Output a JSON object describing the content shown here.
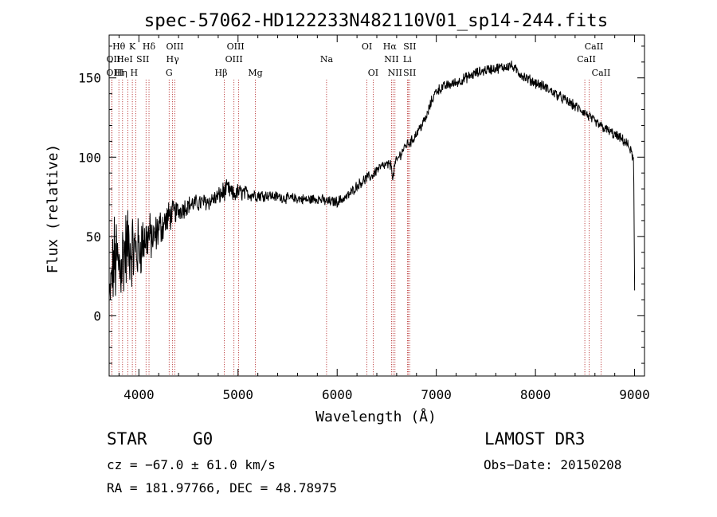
{
  "chart_data": {
    "type": "line",
    "title": "spec-57062-HD122233N482110V01_sp14-244.fits",
    "xlabel": "Wavelength (Å)",
    "ylabel": "Flux (relative)",
    "xlim": [
      3700,
      9100
    ],
    "ylim": [
      -38,
      177
    ],
    "xticks": [
      "4000",
      "5000",
      "6000",
      "7000",
      "8000",
      "9000"
    ],
    "xtick_values": [
      4000,
      5000,
      6000,
      7000,
      8000,
      9000
    ],
    "yticks": [
      "0",
      "50",
      "100",
      "150"
    ],
    "ytick_values": [
      0,
      50,
      100,
      150
    ],
    "series": [
      {
        "name": "flux",
        "color": "#000000",
        "x": [
          3700,
          3750,
          3800,
          3850,
          3900,
          3950,
          4000,
          4050,
          4100,
          4150,
          4200,
          4250,
          4300,
          4350,
          4400,
          4450,
          4500,
          4600,
          4700,
          4800,
          4850,
          4900,
          4950,
          5000,
          5100,
          5200,
          5300,
          5400,
          5500,
          5600,
          5700,
          5800,
          5900,
          6000,
          6100,
          6200,
          6300,
          6350,
          6400,
          6450,
          6500,
          6550,
          6563,
          6580,
          6620,
          6700,
          6750,
          6800,
          6900,
          6950,
          7000,
          7100,
          7200,
          7300,
          7400,
          7500,
          7600,
          7700,
          7750,
          7800,
          7900,
          8000,
          8100,
          8200,
          8300,
          8400,
          8500,
          8600,
          8700,
          8800,
          8900,
          8950,
          8990,
          9000
        ],
        "y": [
          10,
          35,
          30,
          40,
          45,
          40,
          42,
          48,
          50,
          48,
          55,
          58,
          62,
          65,
          66,
          68,
          70,
          71,
          72,
          75,
          78,
          80,
          76,
          78,
          77,
          76,
          76,
          75,
          74,
          74,
          73,
          74,
          72,
          72,
          75,
          82,
          87,
          88,
          92,
          94,
          95,
          95,
          85,
          95,
          100,
          108,
          110,
          115,
          125,
          135,
          142,
          145,
          147,
          150,
          153,
          155,
          156,
          157,
          158,
          155,
          150,
          147,
          144,
          140,
          136,
          132,
          128,
          122,
          118,
          114,
          110,
          106,
          98,
          16
        ],
        "noise_sd": [
          10,
          26,
          28,
          26,
          22,
          22,
          18,
          16,
          14,
          12,
          11,
          10,
          9,
          7,
          6,
          6,
          5,
          5,
          5,
          5,
          6,
          5,
          5,
          5,
          4,
          4,
          3,
          3,
          3,
          3,
          3,
          3,
          3,
          3,
          3,
          3,
          3,
          3,
          3,
          3,
          3,
          3,
          3,
          3,
          3,
          3,
          3,
          3,
          3,
          3,
          3,
          3,
          3,
          3,
          3,
          3,
          3,
          3,
          3,
          3,
          3,
          3,
          3,
          3,
          3,
          3,
          3,
          3,
          3,
          3,
          3,
          3,
          3,
          3
        ]
      }
    ],
    "lines": [
      {
        "label": "Hθ",
        "wl": 3798,
        "row": 0,
        "dx": 0
      },
      {
        "label": "K",
        "wl": 3934,
        "row": 0,
        "dx": 0
      },
      {
        "label": "Hδ",
        "wl": 4102,
        "row": 0,
        "dx": 0
      },
      {
        "label": "OIII",
        "wl": 4363,
        "row": 0,
        "dx": 0
      },
      {
        "label": "OIII",
        "wl": 4959,
        "row": 0,
        "dx": 2
      },
      {
        "label": "OI",
        "wl": 6300,
        "row": 0,
        "dx": 0
      },
      {
        "label": "Hα",
        "wl": 6563,
        "row": 0,
        "dx": -4
      },
      {
        "label": "SII",
        "wl": 6716,
        "row": 0,
        "dx": 2
      },
      {
        "label": "CaII",
        "wl": 8542,
        "row": 0,
        "dx": 6
      },
      {
        "label": "OII",
        "wl": 3727,
        "row": 1,
        "dx": 2
      },
      {
        "label": "HeI",
        "wl": 3889,
        "row": 1,
        "dx": -4
      },
      {
        "label": "SII",
        "wl": 4072,
        "row": 1,
        "dx": -4
      },
      {
        "label": "Hγ",
        "wl": 4340,
        "row": 1,
        "dx": 0
      },
      {
        "label": "OIII",
        "wl": 5007,
        "row": 1,
        "dx": -6
      },
      {
        "label": "Na",
        "wl": 5893,
        "row": 1,
        "dx": 0
      },
      {
        "label": "NII",
        "wl": 6548,
        "row": 1,
        "dx": 0
      },
      {
        "label": "Li",
        "wl": 6708,
        "row": 1,
        "dx": 0
      },
      {
        "label": "CaII",
        "wl": 8498,
        "row": 1,
        "dx": 2
      },
      {
        "label": "OIII",
        "wl": 3727,
        "row": 2,
        "dx": 4
      },
      {
        "label": "Hη",
        "wl": 3835,
        "row": 2,
        "dx": -2
      },
      {
        "label": "H",
        "wl": 3968,
        "row": 2,
        "dx": -2
      },
      {
        "label": "G",
        "wl": 4305,
        "row": 2,
        "dx": 0
      },
      {
        "label": "Hβ",
        "wl": 4861,
        "row": 2,
        "dx": -4
      },
      {
        "label": "Mg",
        "wl": 5175,
        "row": 2,
        "dx": 0
      },
      {
        "label": "OI",
        "wl": 6363,
        "row": 2,
        "dx": 0
      },
      {
        "label": "NII",
        "wl": 6583,
        "row": 2,
        "dx": 0
      },
      {
        "label": "SII",
        "wl": 6731,
        "row": 2,
        "dx": 0
      },
      {
        "label": "CaII",
        "wl": 8662,
        "row": 2,
        "dx": 0
      }
    ]
  },
  "info": {
    "class_label": "STAR",
    "subclass": "G0",
    "survey": "LAMOST DR3",
    "redshift": "cz = −67.0 ± 61.0 km/s",
    "obs_date": "Obs−Date: 20150208",
    "coords": "RA = 181.97766, DEC =  48.78975"
  },
  "colors": {
    "line_marker": "#b22222",
    "axis": "#000000",
    "background": "#ffffff"
  }
}
